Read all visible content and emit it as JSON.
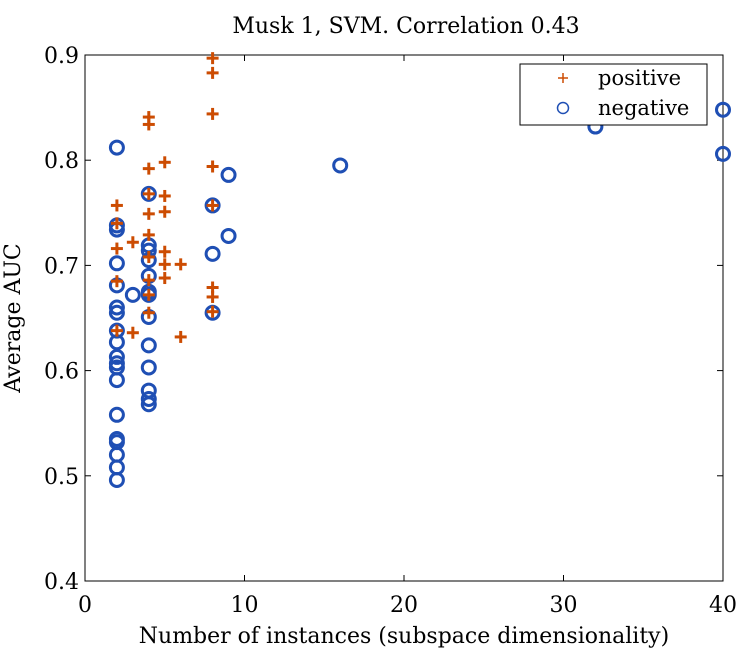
{
  "chart_data": {
    "type": "scatter",
    "title": "Musk 1, SVM. Correlation 0.43",
    "xlabel": "Number of instances (subspace dimensionality)",
    "ylabel": "Average AUC",
    "xlim": [
      0,
      40
    ],
    "ylim": [
      0.4,
      0.9
    ],
    "xticks": [
      0,
      10,
      20,
      30,
      40
    ],
    "xtick_labels": [
      "0",
      "10",
      "20",
      "30",
      "40"
    ],
    "yticks": [
      0.4,
      0.5,
      0.6,
      0.7,
      0.8,
      0.9
    ],
    "ytick_labels": [
      "0.4",
      "0.5",
      "0.6",
      "0.7",
      "0.8",
      "0.9"
    ],
    "grid": false,
    "legend_position": "top-right",
    "series": [
      {
        "name": "positive",
        "marker": "plus",
        "color": "#CC4C02",
        "points": [
          [
            2,
            0.757
          ],
          [
            2,
            0.74
          ],
          [
            2,
            0.716
          ],
          [
            2,
            0.685
          ],
          [
            2,
            0.638
          ],
          [
            3,
            0.722
          ],
          [
            3,
            0.636
          ],
          [
            4,
            0.841
          ],
          [
            4,
            0.834
          ],
          [
            4,
            0.792
          ],
          [
            4,
            0.768
          ],
          [
            4,
            0.749
          ],
          [
            4,
            0.729
          ],
          [
            4,
            0.708
          ],
          [
            4,
            0.686
          ],
          [
            4,
            0.672
          ],
          [
            4,
            0.655
          ],
          [
            5,
            0.798
          ],
          [
            5,
            0.766
          ],
          [
            5,
            0.751
          ],
          [
            5,
            0.713
          ],
          [
            5,
            0.701
          ],
          [
            5,
            0.688
          ],
          [
            6,
            0.701
          ],
          [
            6,
            0.632
          ],
          [
            8,
            0.897
          ],
          [
            8,
            0.883
          ],
          [
            8,
            0.844
          ],
          [
            8,
            0.794
          ],
          [
            8,
            0.757
          ],
          [
            8,
            0.679
          ],
          [
            8,
            0.67
          ],
          [
            8,
            0.656
          ]
        ]
      },
      {
        "name": "negative",
        "marker": "circle",
        "color": "#1F4FB4",
        "points": [
          [
            2,
            0.812
          ],
          [
            2,
            0.738
          ],
          [
            2,
            0.734
          ],
          [
            2,
            0.702
          ],
          [
            2,
            0.681
          ],
          [
            2,
            0.66
          ],
          [
            2,
            0.655
          ],
          [
            2,
            0.638
          ],
          [
            2,
            0.627
          ],
          [
            2,
            0.613
          ],
          [
            2,
            0.607
          ],
          [
            2,
            0.603
          ],
          [
            2,
            0.591
          ],
          [
            2,
            0.558
          ],
          [
            2,
            0.535
          ],
          [
            2,
            0.532
          ],
          [
            2,
            0.52
          ],
          [
            2,
            0.508
          ],
          [
            2,
            0.496
          ],
          [
            3,
            0.672
          ],
          [
            4,
            0.768
          ],
          [
            4,
            0.719
          ],
          [
            4,
            0.714
          ],
          [
            4,
            0.705
          ],
          [
            4,
            0.69
          ],
          [
            4,
            0.675
          ],
          [
            4,
            0.672
          ],
          [
            4,
            0.651
          ],
          [
            4,
            0.624
          ],
          [
            4,
            0.603
          ],
          [
            4,
            0.581
          ],
          [
            4,
            0.573
          ],
          [
            4,
            0.568
          ],
          [
            8,
            0.757
          ],
          [
            8,
            0.711
          ],
          [
            8,
            0.655
          ],
          [
            9,
            0.786
          ],
          [
            9,
            0.728
          ],
          [
            16,
            0.795
          ],
          [
            32,
            0.832
          ],
          [
            40,
            0.848
          ],
          [
            40,
            0.806
          ]
        ]
      }
    ]
  }
}
